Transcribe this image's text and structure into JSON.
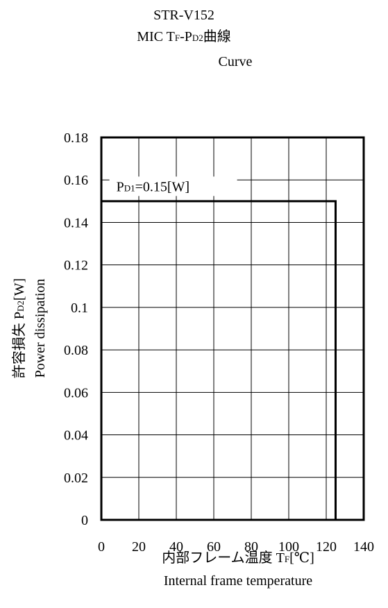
{
  "chart_data": {
    "type": "line",
    "title_lines": [
      {
        "main": "STR-V152"
      },
      {
        "main": "MIC T",
        "sub1": "F",
        "mid": "-P",
        "sub2": "D2",
        "tail": "曲線"
      },
      {
        "main": "Curve"
      }
    ],
    "xlabel": {
      "jp": "内部フレーム温度 T",
      "sub": "F",
      "unit": "[℃]",
      "en": "Internal frame temperature"
    },
    "ylabel": {
      "jp": "許容損失 P",
      "sub": "D2",
      "unit": "[W]",
      "en": "Power dissipation"
    },
    "xlim": [
      0,
      140
    ],
    "ylim": [
      0,
      0.18
    ],
    "x_ticks": [
      "0",
      "20",
      "40",
      "60",
      "80",
      "100",
      "120",
      "140"
    ],
    "y_ticks": [
      "0",
      "0.02",
      "0.04",
      "0.06",
      "0.08",
      "0.1",
      "0.12",
      "0.14",
      "0.16",
      "0.18"
    ],
    "grid": true,
    "series": [
      {
        "x": [
          0,
          125,
          125
        ],
        "y": [
          0.15,
          0.15,
          0
        ]
      }
    ],
    "annotation": {
      "prefix": "P",
      "sub": "D1",
      "text": "=0.15[W]"
    }
  }
}
